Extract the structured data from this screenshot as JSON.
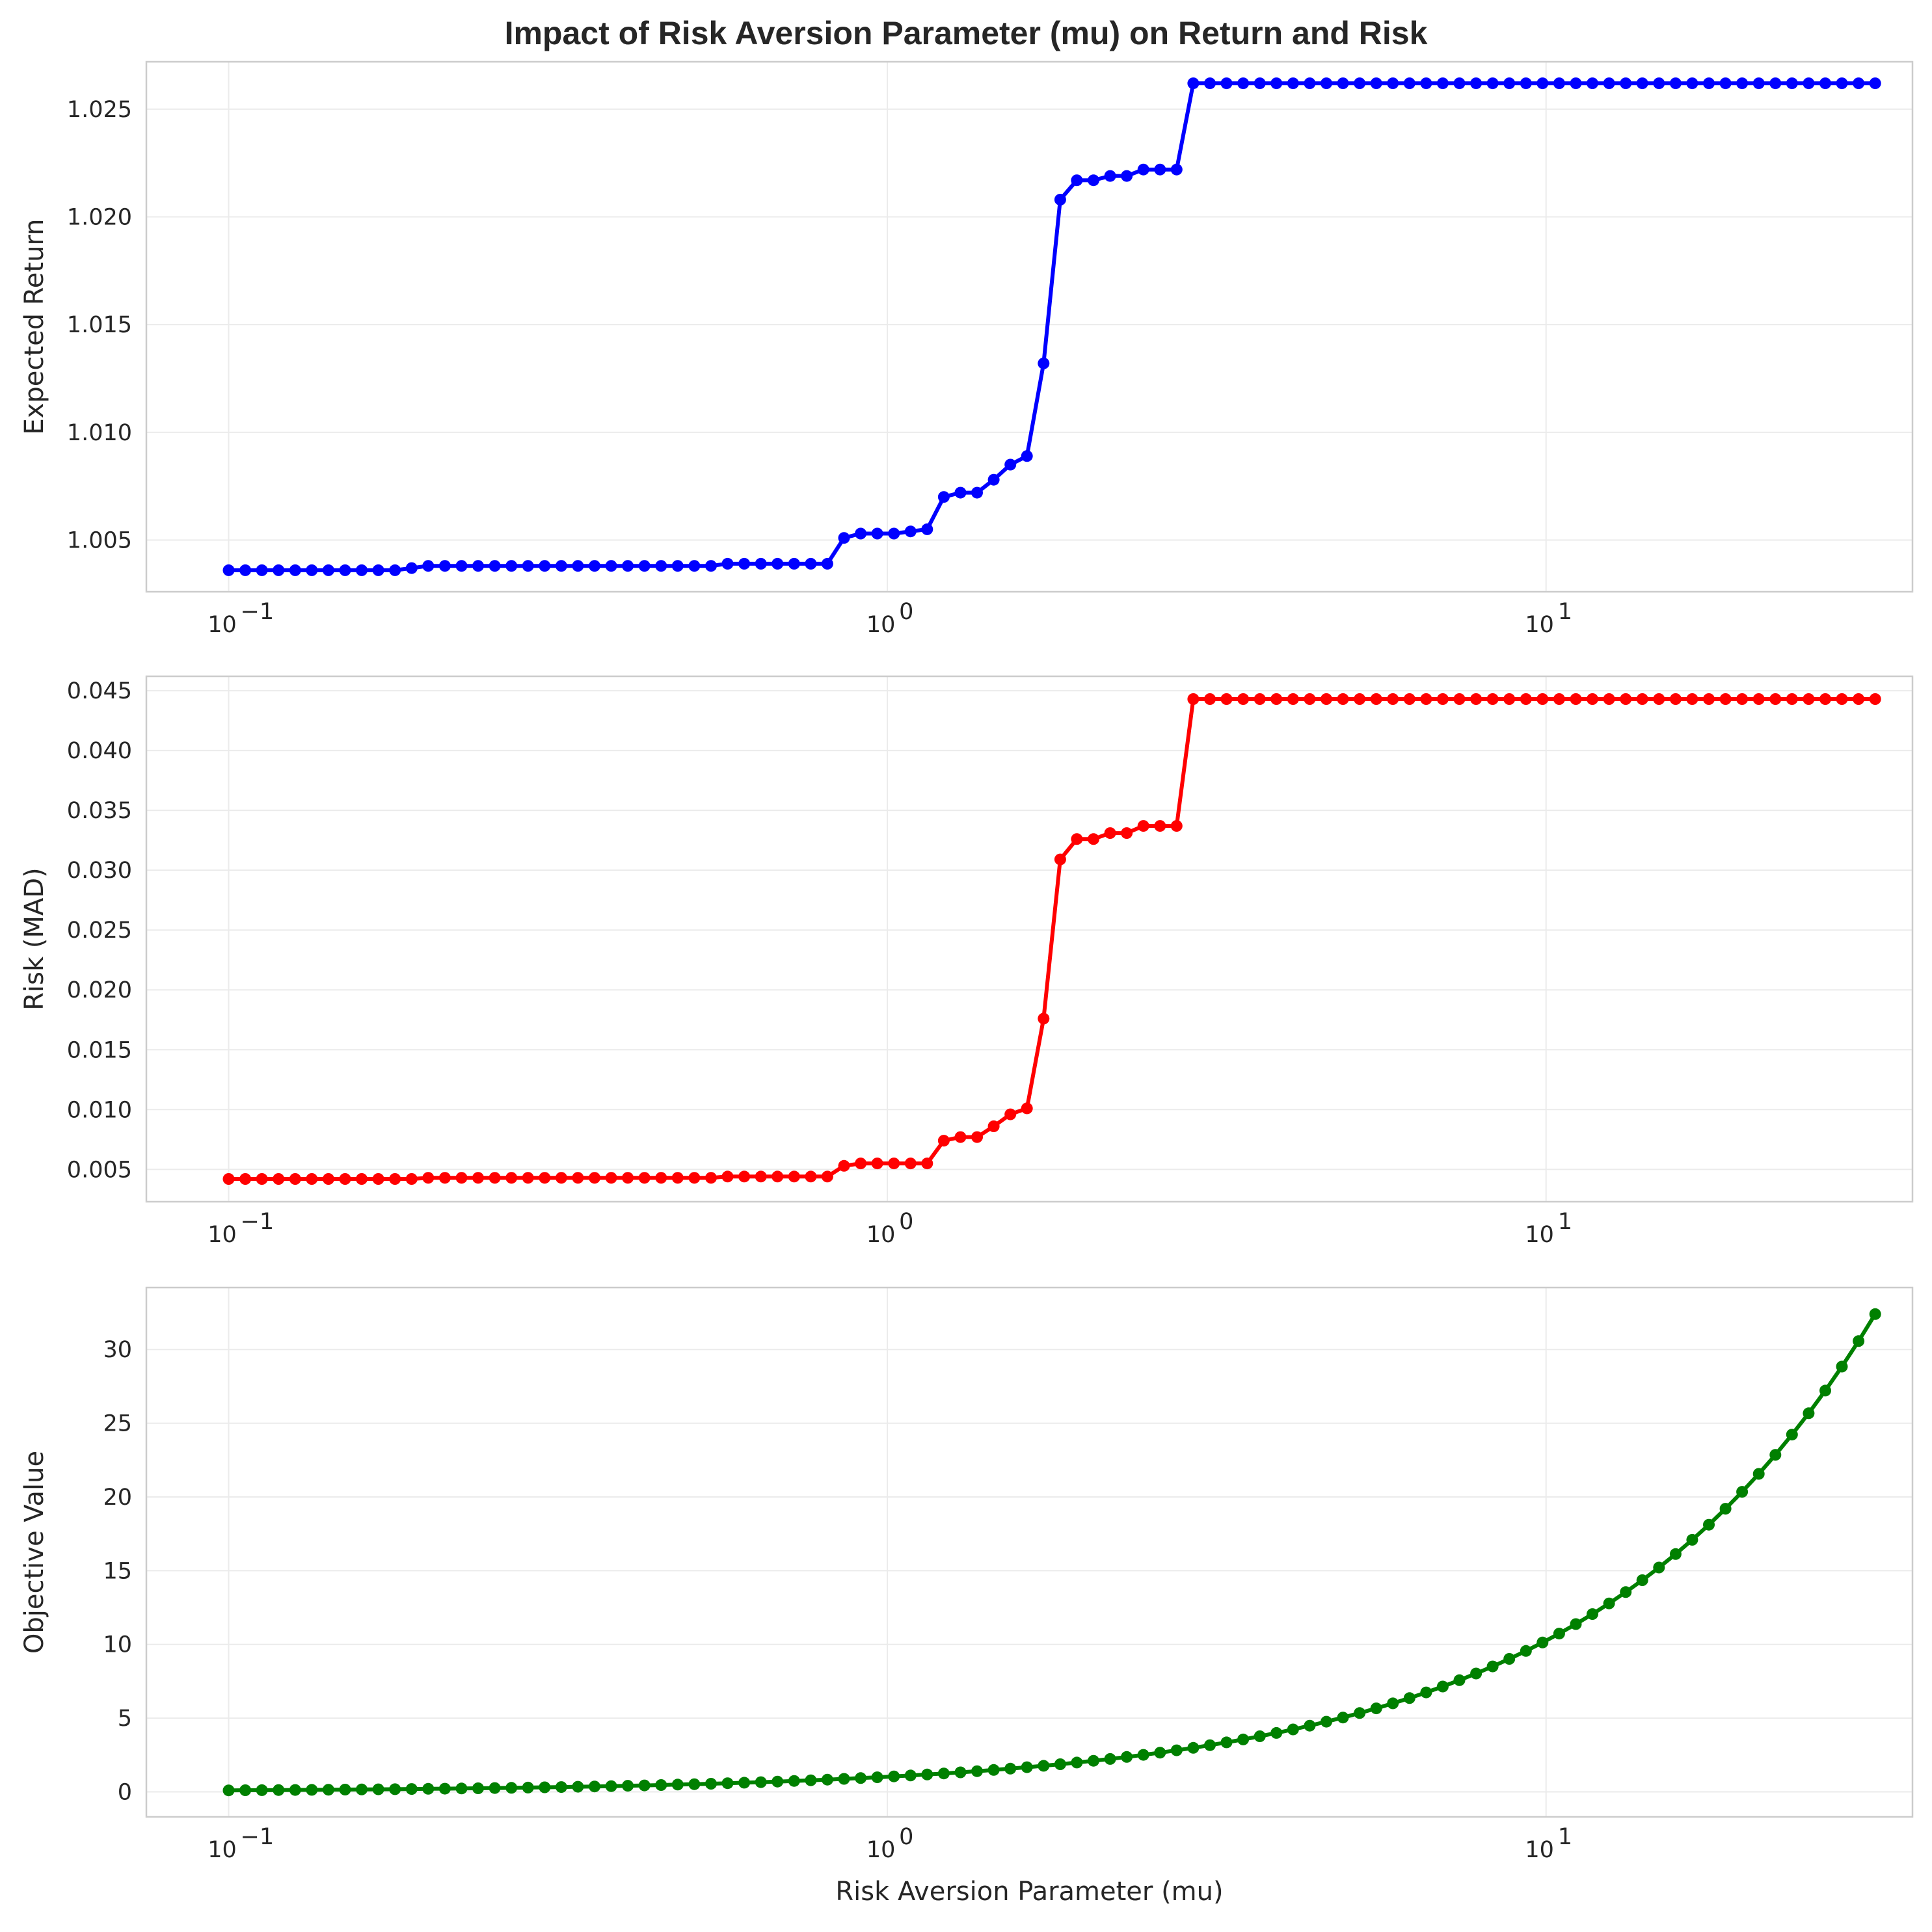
{
  "chart_data": [
    {
      "type": "line",
      "title": "Impact of Risk Aversion Parameter (mu) on Return and Risk",
      "xlabel": "",
      "ylabel": "Expected Return",
      "x_scale": "log",
      "xlim": [
        0.075,
        36
      ],
      "ylim": [
        1.0026,
        1.0272
      ],
      "yticks": [
        1.005,
        1.01,
        1.015,
        1.02,
        1.025
      ],
      "ytick_labels": [
        "1.005",
        "1.010",
        "1.015",
        "1.020",
        "1.025"
      ],
      "xticks": [
        0.1,
        1,
        10
      ],
      "xtick_labels": [
        [
          "10",
          "−1"
        ],
        [
          "10",
          "0"
        ],
        [
          "10",
          "1"
        ]
      ],
      "grid": true,
      "color": "#0000ff",
      "steps": [
        {
          "from": 0.1,
          "value": 1.0036
        },
        {
          "from": 0.18,
          "value": 1.0037
        },
        {
          "from": 0.19,
          "value": 1.0038
        },
        {
          "from": 0.57,
          "value": 1.0039
        },
        {
          "from": 0.85,
          "value": 1.0051
        },
        {
          "from": 0.895,
          "value": 1.0053
        },
        {
          "from": 1.05,
          "value": 1.0054
        },
        {
          "from": 1.12,
          "value": 1.0055
        },
        {
          "from": 1.18,
          "value": 1.007
        },
        {
          "from": 1.25,
          "value": 1.0072
        },
        {
          "from": 1.4,
          "value": 1.0078
        },
        {
          "from": 1.48,
          "value": 1.0085
        },
        {
          "from": 1.57,
          "value": 1.0089
        },
        {
          "from": 1.66,
          "value": 1.0132
        },
        {
          "from": 1.76,
          "value": 1.0208
        },
        {
          "from": 1.86,
          "value": 1.0217
        },
        {
          "from": 2.08,
          "value": 1.0219
        },
        {
          "from": 2.35,
          "value": 1.0222
        },
        {
          "from": 2.75,
          "value": 1.0262
        }
      ]
    },
    {
      "type": "line",
      "title": "",
      "xlabel": "",
      "ylabel": "Risk (MAD)",
      "x_scale": "log",
      "xlim": [
        0.075,
        36
      ],
      "ylim": [
        0.0023,
        0.0462
      ],
      "yticks": [
        0.005,
        0.01,
        0.015,
        0.02,
        0.025,
        0.03,
        0.035,
        0.04,
        0.045
      ],
      "ytick_labels": [
        "0.005",
        "0.010",
        "0.015",
        "0.020",
        "0.025",
        "0.030",
        "0.035",
        "0.040",
        "0.045"
      ],
      "xticks": [
        0.1,
        1,
        10
      ],
      "xtick_labels": [
        [
          "10",
          "−1"
        ],
        [
          "10",
          "0"
        ],
        [
          "10",
          "1"
        ]
      ],
      "grid": true,
      "color": "#ff0000",
      "steps": [
        {
          "from": 0.1,
          "value": 0.0042
        },
        {
          "from": 0.19,
          "value": 0.0043
        },
        {
          "from": 0.57,
          "value": 0.0044
        },
        {
          "from": 0.85,
          "value": 0.0053
        },
        {
          "from": 0.895,
          "value": 0.0055
        },
        {
          "from": 1.18,
          "value": 0.0074
        },
        {
          "from": 1.25,
          "value": 0.0077
        },
        {
          "from": 1.4,
          "value": 0.0086
        },
        {
          "from": 1.48,
          "value": 0.0096
        },
        {
          "from": 1.57,
          "value": 0.0101
        },
        {
          "from": 1.66,
          "value": 0.0176
        },
        {
          "from": 1.76,
          "value": 0.0309
        },
        {
          "from": 1.86,
          "value": 0.0326
        },
        {
          "from": 2.08,
          "value": 0.0331
        },
        {
          "from": 2.35,
          "value": 0.0337
        },
        {
          "from": 2.75,
          "value": 0.0439
        },
        {
          "from": 2.9,
          "value": 0.0443
        }
      ]
    },
    {
      "type": "line",
      "title": "",
      "xlabel": "Risk Aversion Parameter (mu)",
      "ylabel": "Objective Value",
      "x_scale": "log",
      "xlim": [
        0.075,
        36
      ],
      "ylim": [
        -1.7,
        34.2
      ],
      "yticks": [
        0,
        5,
        10,
        15,
        20,
        25,
        30
      ],
      "ytick_labels": [
        "0",
        "5",
        "10",
        "15",
        "20",
        "25",
        "30"
      ],
      "xticks": [
        0.1,
        1,
        10
      ],
      "xtick_labels": [
        [
          "10",
          "−1"
        ],
        [
          "10",
          "0"
        ],
        [
          "10",
          "1"
        ]
      ],
      "grid": true,
      "color": "#008000",
      "relation": "y = 1.0263 * x approximately",
      "start": [
        0.1,
        0.1
      ],
      "end": [
        31.6,
        32.4
      ]
    }
  ]
}
